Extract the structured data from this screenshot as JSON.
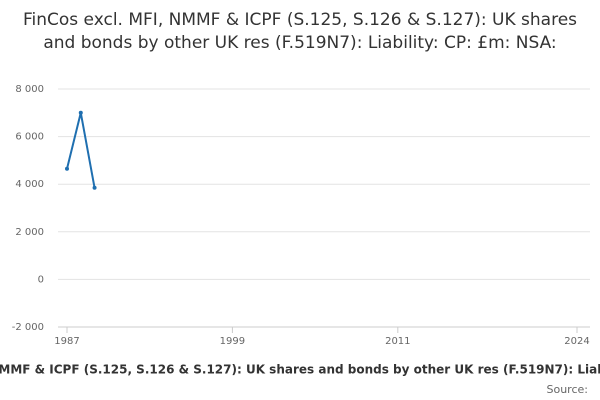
{
  "chart_data": {
    "type": "line",
    "title": "FinCos excl. MFI, NMMF & ICPF (S.125, S.126 & S.127): UK shares and bonds by other UK res (F.519N7): Liability: CP: £m: NSA:",
    "x": [
      1987,
      1988,
      1989
    ],
    "series": [
      {
        "name": "FinCos excl. MFI, NMMF & ICPF (S.125, S.126 & S.127): UK shares and bonds by other UK res (F.519N7): Liability: CP: £m: NSA:",
        "color": "#1f6fb0",
        "values": [
          4650,
          7000,
          3850
        ]
      }
    ],
    "xlim": [
      1987,
      2024
    ],
    "xticks": [
      1987,
      1999,
      2011,
      2024
    ],
    "ylim": [
      -2000,
      8000
    ],
    "yticks": [
      {
        "value": -2000,
        "label": "-2 000"
      },
      0,
      {
        "value": 2000,
        "label": "2 000"
      },
      {
        "value": 4000,
        "label": "4 000"
      },
      {
        "value": 6000,
        "label": "6 000"
      },
      {
        "value": 8000,
        "label": "8 000"
      }
    ],
    "grid": true,
    "source_label": "Source:"
  }
}
